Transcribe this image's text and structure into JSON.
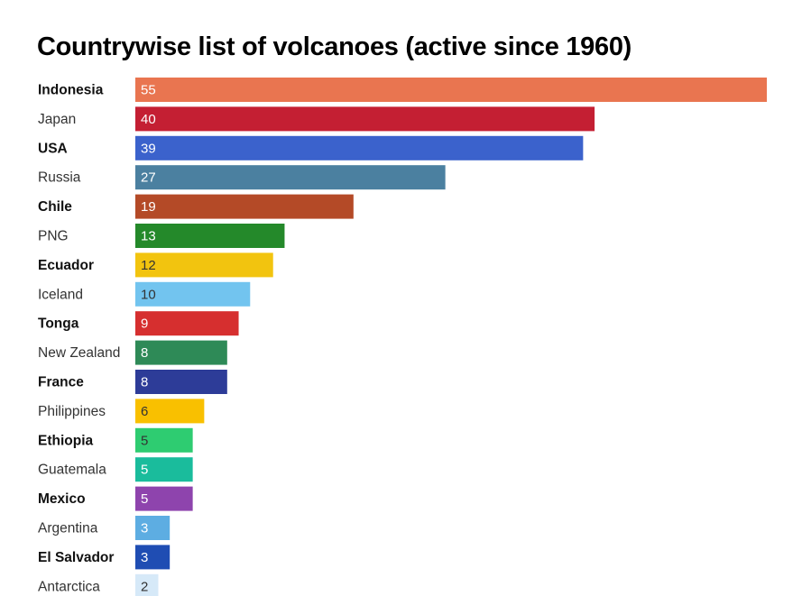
{
  "chart_data": {
    "type": "bar",
    "orientation": "horizontal",
    "title": "Countrywise list of volcanoes (active since 1960)",
    "xlabel": "",
    "ylabel": "",
    "xlim": [
      0,
      55
    ],
    "grid": false,
    "legend": "none",
    "categories": [
      "Indonesia",
      "Japan",
      "USA",
      "Russia",
      "Chile",
      "PNG",
      "Ecuador",
      "Iceland",
      "Tonga",
      "New Zealand",
      "France",
      "Philippines",
      "Ethiopia",
      "Guatemala",
      "Mexico",
      "Argentina",
      "El Salvador",
      "Antarctica"
    ],
    "values": [
      55,
      40,
      39,
      27,
      19,
      13,
      12,
      10,
      9,
      8,
      8,
      6,
      5,
      5,
      5,
      3,
      3,
      2
    ],
    "colors": [
      "#e97550",
      "#c41f33",
      "#3b62cc",
      "#4b80a0",
      "#b44a27",
      "#24892a",
      "#f2c40f",
      "#72c4ef",
      "#d62f2f",
      "#2e8a57",
      "#2d3c98",
      "#f9c000",
      "#2ecc71",
      "#1abc9c",
      "#8e44ad",
      "#5dade2",
      "#1f4db3",
      "#d6e9f8"
    ],
    "label_colors": [
      "#ffffff",
      "#ffffff",
      "#ffffff",
      "#ffffff",
      "#ffffff",
      "#ffffff",
      "#333333",
      "#333333",
      "#ffffff",
      "#ffffff",
      "#ffffff",
      "#333333",
      "#333333",
      "#ffffff",
      "#ffffff",
      "#ffffff",
      "#ffffff",
      "#333333"
    ],
    "bold_labels": [
      true,
      false,
      true,
      false,
      true,
      false,
      true,
      false,
      true,
      false,
      true,
      false,
      true,
      false,
      true,
      false,
      true,
      false
    ]
  }
}
